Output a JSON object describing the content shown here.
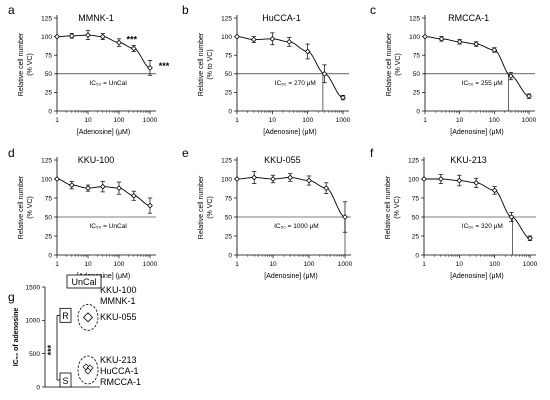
{
  "panels": [
    {
      "letter": "a",
      "title": "MMNK-1",
      "ylabel": "Relative cell number",
      "ylabel2": "(% VC)",
      "xlabel": "[Adenosine] (μM)",
      "ic50": "IC₅₀ = UnCal",
      "ic50_x": null,
      "sig": [
        "***",
        "***"
      ]
    },
    {
      "letter": "b",
      "title": "HuCCA-1",
      "ylabel": "Relative cell number",
      "ylabel2": "(% to VC)",
      "xlabel": "[Adenosine] (μM)",
      "ic50": "IC₅₀ = 270 μM",
      "ic50_x": 270,
      "sig": []
    },
    {
      "letter": "c",
      "title": "RMCCA-1",
      "ylabel": "Relative cell number",
      "ylabel2": "(% VC)",
      "xlabel": "[Adenosine] (μM)",
      "ic50": "IC₅₀ = 255 μM",
      "ic50_x": 255,
      "sig": []
    },
    {
      "letter": "d",
      "title": "KKU-100",
      "ylabel": "Relative cell number",
      "ylabel2": "(% VC)",
      "xlabel": "[Adenosine] (μM)",
      "ic50": "IC₅₀ = UnCal",
      "ic50_x": null,
      "sig": []
    },
    {
      "letter": "e",
      "title": "KKU-055",
      "ylabel": "Relative cell number",
      "ylabel2": "(% VC)",
      "xlabel": "[Adenosine] (μM)",
      "ic50": "IC₅₀ = 1000 μM",
      "ic50_x": 1000,
      "sig": []
    },
    {
      "letter": "f",
      "title": "KKU-213",
      "ylabel": "Relative cell number",
      "ylabel2": "(% VC)",
      "xlabel": "[Adenosine] (μM)",
      "ic50": "IC₅₀ = 320 μM",
      "ic50_x": 320,
      "sig": []
    }
  ],
  "chart_data": [
    {
      "type": "line",
      "title": "MMNK-1",
      "x": [
        1,
        3,
        10,
        30,
        100,
        300,
        1000
      ],
      "values": [
        100,
        101,
        102,
        100,
        92,
        84,
        58
      ],
      "error": [
        0,
        3,
        6,
        4,
        5,
        4,
        10
      ],
      "xscale": "log",
      "ylim": [
        0,
        125
      ],
      "yticks": [
        0,
        25,
        50,
        75,
        100,
        125
      ],
      "xticks": [
        1,
        10,
        100,
        1000
      ],
      "ref_line": 50
    },
    {
      "type": "line",
      "title": "HuCCA-1",
      "x": [
        1,
        3,
        10,
        30,
        100,
        300,
        1000
      ],
      "values": [
        100,
        96,
        97,
        93,
        80,
        50,
        18
      ],
      "error": [
        0,
        4,
        8,
        6,
        10,
        12,
        3
      ],
      "xscale": "log",
      "ylim": [
        0,
        125
      ],
      "yticks": [
        0,
        25,
        50,
        75,
        100,
        125
      ],
      "xticks": [
        1,
        10,
        100,
        1000
      ],
      "ref_line": 50
    },
    {
      "type": "line",
      "title": "RMCCA-1",
      "x": [
        1,
        3,
        10,
        30,
        100,
        300,
        1000
      ],
      "values": [
        100,
        97,
        93,
        90,
        82,
        47,
        20
      ],
      "error": [
        0,
        3,
        3,
        3,
        3,
        5,
        3
      ],
      "xscale": "log",
      "ylim": [
        0,
        125
      ],
      "yticks": [
        0,
        25,
        50,
        75,
        100,
        125
      ],
      "xticks": [
        1,
        10,
        100,
        1000
      ],
      "ref_line": 50
    },
    {
      "type": "line",
      "title": "KKU-100",
      "x": [
        1,
        3,
        10,
        30,
        100,
        300,
        1000
      ],
      "values": [
        100,
        92,
        88,
        90,
        88,
        78,
        65
      ],
      "error": [
        0,
        5,
        4,
        7,
        8,
        6,
        10
      ],
      "xscale": "log",
      "ylim": [
        0,
        125
      ],
      "yticks": [
        0,
        25,
        50,
        75,
        100,
        125
      ],
      "xticks": [
        1,
        10,
        100,
        1000
      ],
      "ref_line": 50
    },
    {
      "type": "line",
      "title": "KKU-055",
      "x": [
        1,
        3,
        10,
        30,
        100,
        300,
        1000
      ],
      "values": [
        100,
        102,
        100,
        102,
        98,
        88,
        50
      ],
      "error": [
        0,
        8,
        5,
        5,
        6,
        7,
        20
      ],
      "xscale": "log",
      "ylim": [
        0,
        125
      ],
      "yticks": [
        0,
        25,
        50,
        75,
        100,
        125
      ],
      "xticks": [
        1,
        10,
        100,
        1000
      ],
      "ref_line": 50
    },
    {
      "type": "line",
      "title": "KKU-213",
      "x": [
        1,
        3,
        10,
        30,
        100,
        300,
        1000
      ],
      "values": [
        100,
        100,
        98,
        95,
        85,
        50,
        22
      ],
      "error": [
        0,
        6,
        7,
        6,
        5,
        6,
        3
      ],
      "xscale": "log",
      "ylim": [
        0,
        125
      ],
      "yticks": [
        0,
        25,
        50,
        75,
        100,
        125
      ],
      "xticks": [
        1,
        10,
        100,
        1000
      ],
      "ref_line": 50
    },
    {
      "type": "scatter",
      "letter": "g",
      "ylabel": "IC₅₀ of adenosine",
      "ylim": [
        0,
        1500
      ],
      "yticks": [
        0,
        500,
        1000,
        1500
      ],
      "uncal_label": "UnCal",
      "uncal_lines": [
        "KKU-100",
        "MMNK-1"
      ],
      "group_R": {
        "label": "R",
        "lines": [
          "KKU-055"
        ],
        "values": [
          1000
        ]
      },
      "group_S": {
        "label": "S",
        "lines": [
          "KKU-213",
          "HuCCA-1",
          "RMCCA-1"
        ],
        "values": [
          320,
          270,
          255
        ]
      },
      "sig": "***"
    }
  ]
}
